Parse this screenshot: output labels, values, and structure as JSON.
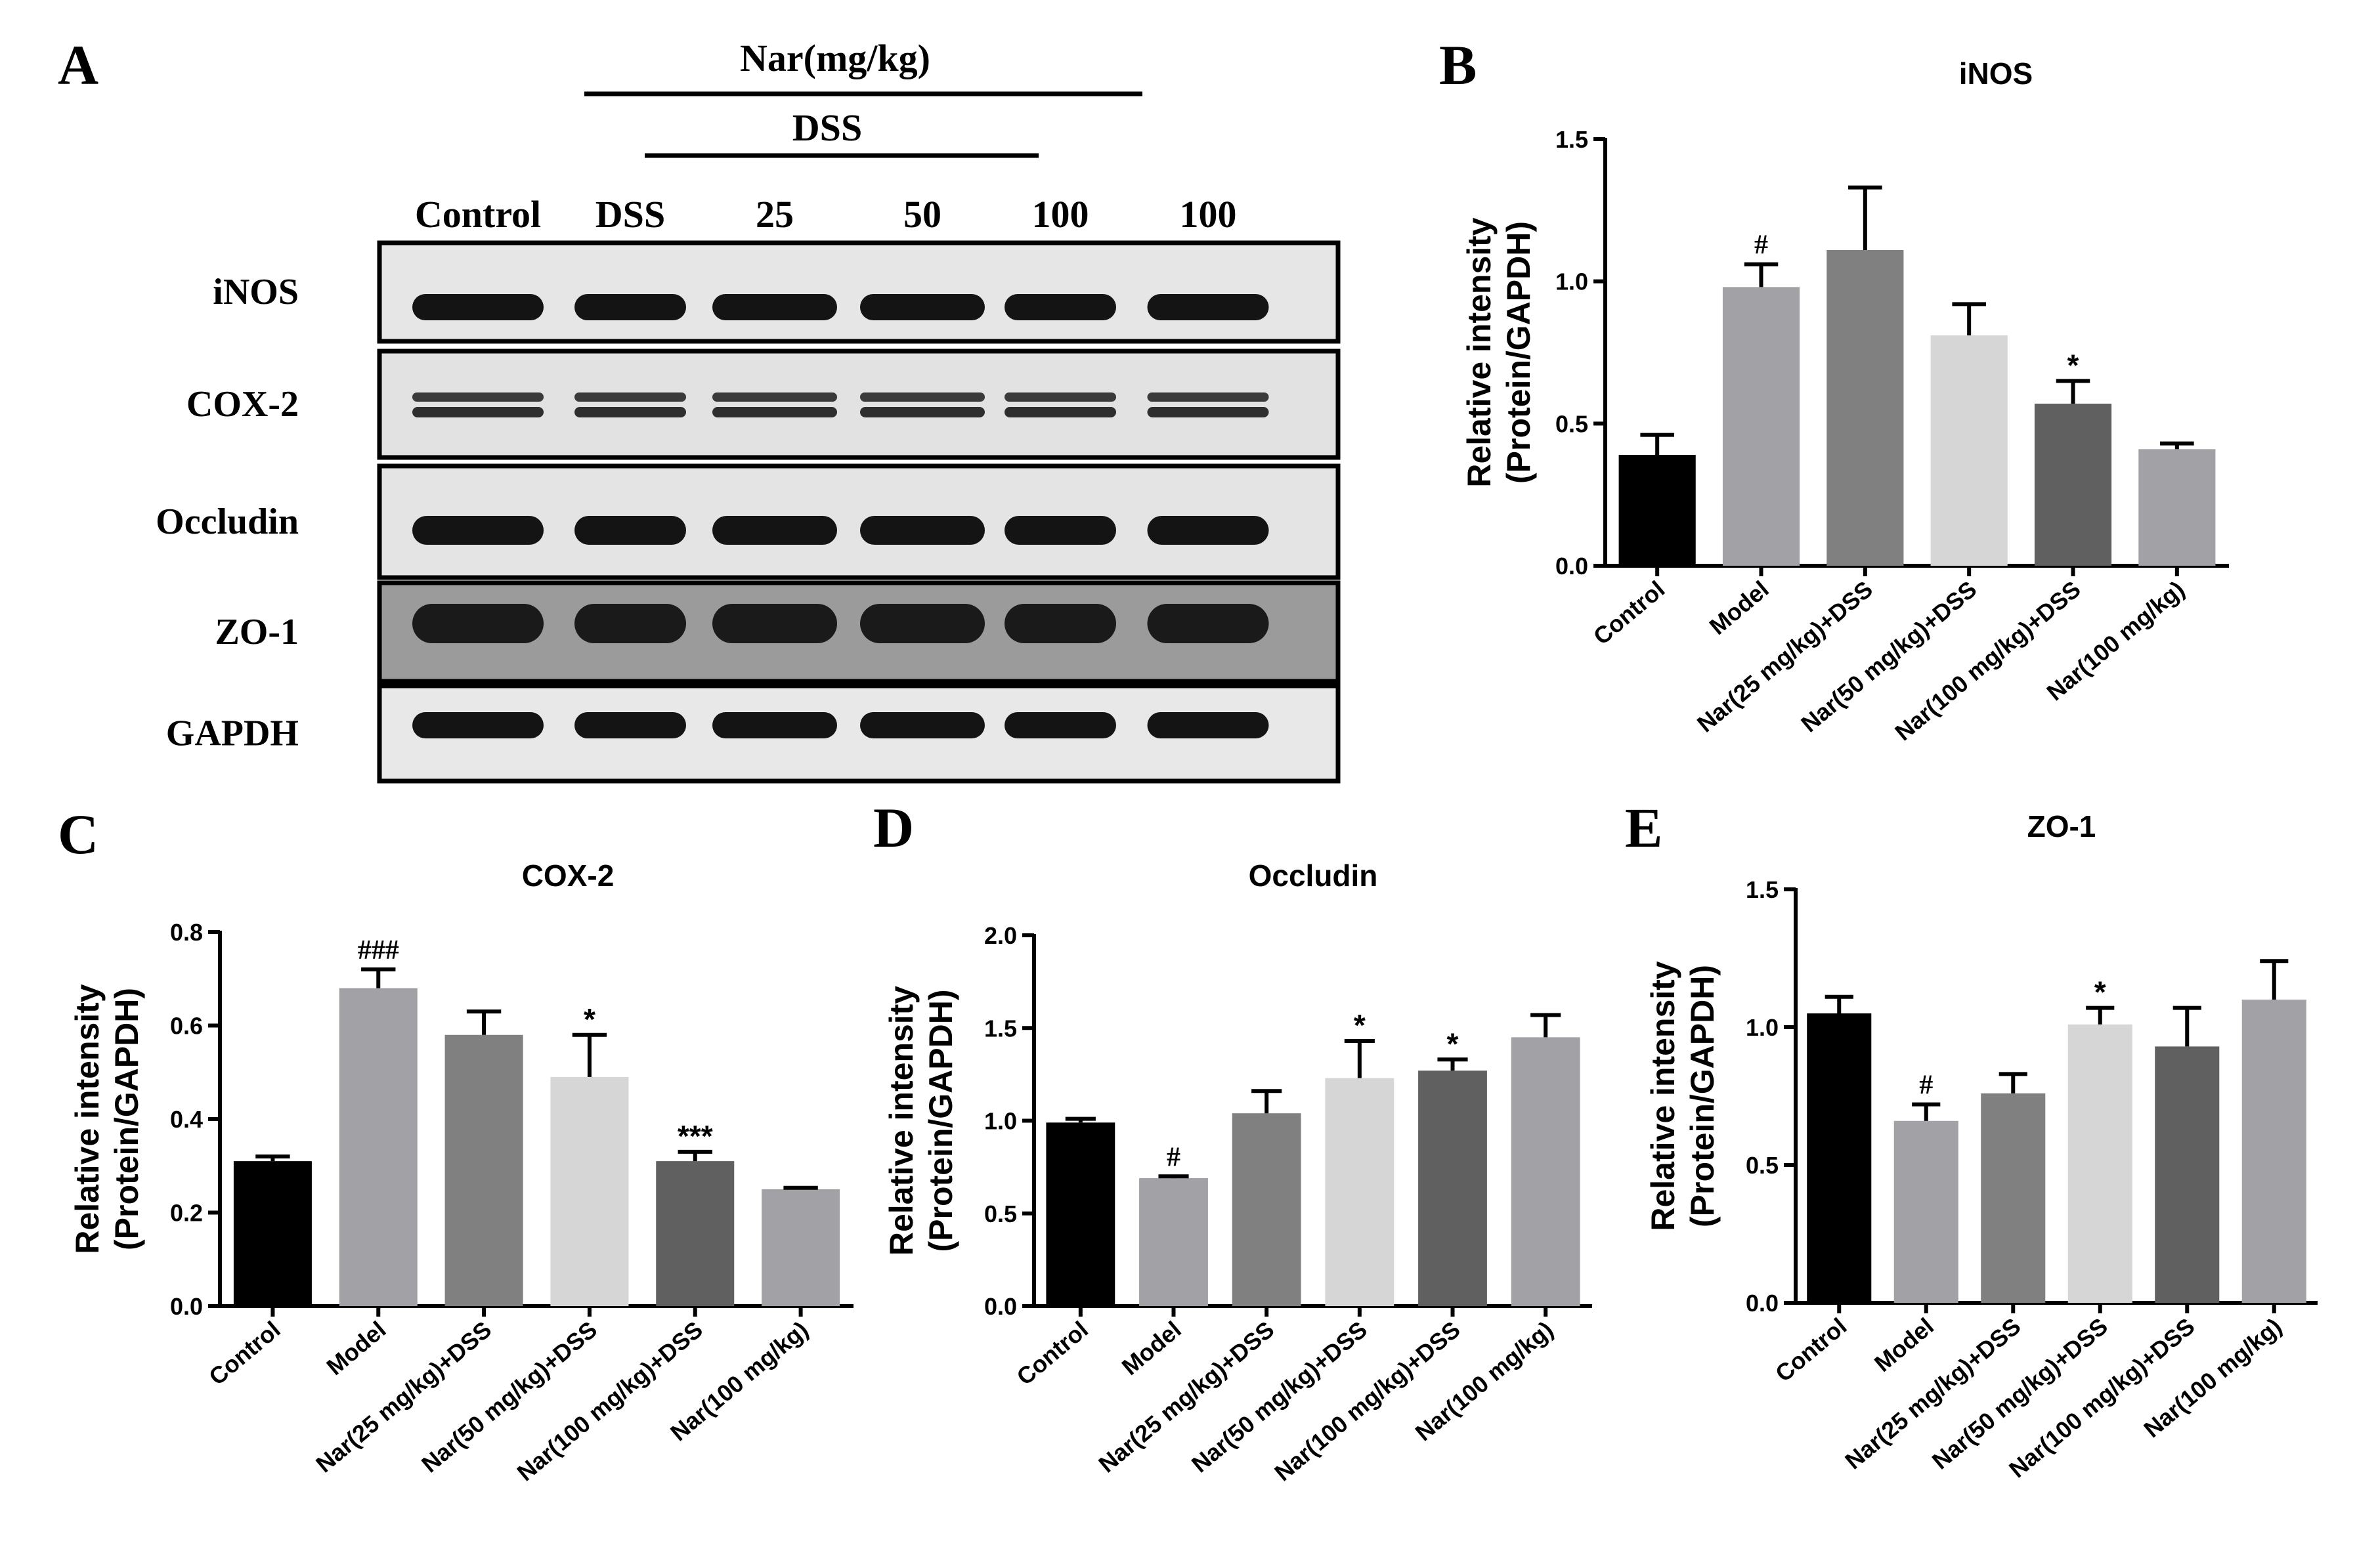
{
  "panel_labels": {
    "a": "A",
    "b": "B",
    "c": "C",
    "d": "D",
    "e": "E"
  },
  "blot": {
    "top_header": "Nar(mg/kg)",
    "sub_header": "DSS",
    "lanes": [
      "Control",
      "DSS",
      "25",
      "50",
      "100",
      "100"
    ],
    "rows": [
      "iNOS",
      "COX-2",
      "Occludin",
      "ZO-1",
      "GAPDH"
    ]
  },
  "chart_data": [
    {
      "type": "bar",
      "panel": "B",
      "title": "iNOS",
      "ylabel": "Relative intensity (Protein/GAPDH)",
      "ylabel_lines": [
        "Relative intensity",
        "(Protein/GAPDH)"
      ],
      "ylim": [
        0,
        1.5
      ],
      "yticks": [
        "0.0",
        "0.5",
        "1.0",
        "1.5"
      ],
      "ytick_values": [
        0,
        0.5,
        1.0,
        1.5
      ],
      "categories": [
        "Control",
        "Model",
        "Nar(25 mg/kg)+DSS",
        "Nar(50 mg/kg)+DSS",
        "Nar(100 mg/kg)+DSS",
        "Nar(100 mg/kg)"
      ],
      "values": [
        0.39,
        0.98,
        1.11,
        0.81,
        0.57,
        0.41
      ],
      "errors": [
        0.07,
        0.08,
        0.22,
        0.11,
        0.08,
        0.02
      ],
      "annotations": [
        "",
        "#",
        "",
        "",
        "*",
        ""
      ],
      "colors": [
        "#000000",
        "#a2a2a6",
        "#808080",
        "#d6d6d6",
        "#606060",
        "#a2a2a6"
      ],
      "grid": false
    },
    {
      "type": "bar",
      "panel": "C",
      "title": "COX-2",
      "ylabel": "Relative intensity (Protein/GAPDH)",
      "ylabel_lines": [
        "Relative intensity",
        "(Protein/GAPDH)"
      ],
      "ylim": [
        0,
        0.8
      ],
      "yticks": [
        "0.0",
        "0.2",
        "0.4",
        "0.6",
        "0.8"
      ],
      "ytick_values": [
        0,
        0.2,
        0.4,
        0.6,
        0.8
      ],
      "categories": [
        "Control",
        "Model",
        "Nar(25 mg/kg)+DSS",
        "Nar(50 mg/kg)+DSS",
        "Nar(100 mg/kg)+DSS",
        "Nar(100 mg/kg)"
      ],
      "values": [
        0.31,
        0.68,
        0.58,
        0.49,
        0.31,
        0.25
      ],
      "errors": [
        0.01,
        0.04,
        0.05,
        0.09,
        0.02,
        0.003
      ],
      "annotations": [
        "",
        "###",
        "",
        "*",
        "***",
        ""
      ],
      "colors": [
        "#000000",
        "#a2a2a6",
        "#808080",
        "#d6d6d6",
        "#606060",
        "#a2a2a6"
      ],
      "grid": false
    },
    {
      "type": "bar",
      "panel": "D",
      "title": "Occludin",
      "ylabel": "Relative intensity (Protein/GAPDH)",
      "ylabel_lines": [
        "Relative intensity",
        "(Protein/GAPDH)"
      ],
      "ylim": [
        0,
        2.0
      ],
      "yticks": [
        "0.0",
        "0.5",
        "1.0",
        "1.5",
        "2.0"
      ],
      "ytick_values": [
        0,
        0.5,
        1.0,
        1.5,
        2.0
      ],
      "categories": [
        "Control",
        "Model",
        "Nar(25 mg/kg)+DSS",
        "Nar(50 mg/kg)+DSS",
        "Nar(100 mg/kg)+DSS",
        "Nar(100 mg/kg)"
      ],
      "values": [
        0.99,
        0.69,
        1.04,
        1.23,
        1.27,
        1.45
      ],
      "errors": [
        0.02,
        0.01,
        0.12,
        0.2,
        0.06,
        0.12
      ],
      "annotations": [
        "",
        "#",
        "",
        "*",
        "*",
        ""
      ],
      "colors": [
        "#000000",
        "#a2a2a6",
        "#808080",
        "#d6d6d6",
        "#606060",
        "#a2a2a6"
      ],
      "grid": false
    },
    {
      "type": "bar",
      "panel": "E",
      "title": "ZO-1",
      "ylabel": "Relative intensity (Protein/GAPDH)",
      "ylabel_lines": [
        "Relative intensity",
        "(Protein/GAPDH)"
      ],
      "ylim": [
        0,
        1.5
      ],
      "yticks": [
        "0.0",
        "0.5",
        "1.0",
        "1.5"
      ],
      "ytick_values": [
        0,
        0.5,
        1.0,
        1.5
      ],
      "categories": [
        "Control",
        "Model",
        "Nar(25 mg/kg)+DSS",
        "Nar(50 mg/kg)+DSS",
        "Nar(100 mg/kg)+DSS",
        "Nar(100 mg/kg)"
      ],
      "values": [
        1.05,
        0.66,
        0.76,
        1.01,
        0.93,
        1.1
      ],
      "errors": [
        0.06,
        0.06,
        0.07,
        0.06,
        0.14,
        0.14
      ],
      "annotations": [
        "",
        "#",
        "",
        "*",
        "",
        ""
      ],
      "colors": [
        "#000000",
        "#a2a2a6",
        "#808080",
        "#d6d6d6",
        "#606060",
        "#a2a2a6"
      ],
      "grid": false
    }
  ]
}
